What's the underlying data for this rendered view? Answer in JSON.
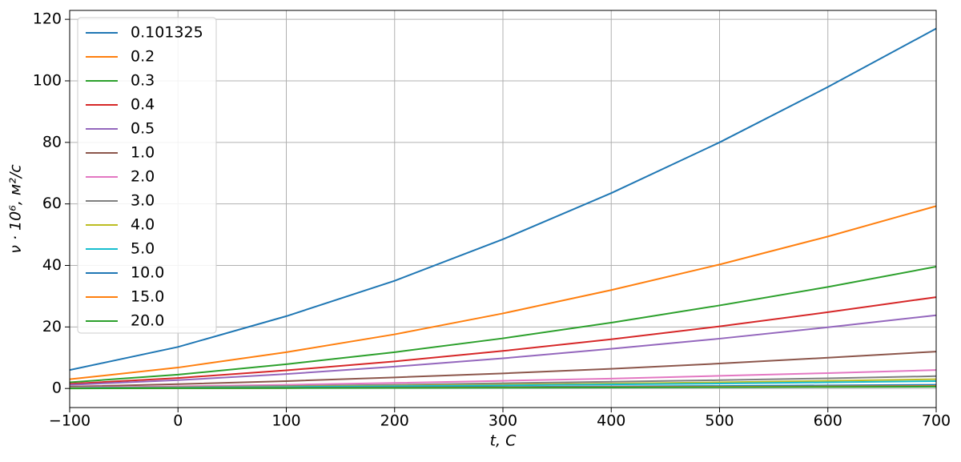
{
  "chart_data": {
    "type": "line",
    "x_label": "t, C",
    "y_label": "ν · 10⁶, м²/с",
    "x": [
      -100,
      0,
      100,
      200,
      300,
      400,
      500,
      600,
      700
    ],
    "xlim": [
      -100,
      700
    ],
    "ylim": [
      -6.2,
      122.9
    ],
    "xticks": [
      {
        "value": -100,
        "label": "−100"
      },
      0,
      100,
      200,
      300,
      400,
      500,
      600,
      700
    ],
    "yticks": [
      0,
      20,
      40,
      60,
      80,
      100,
      120
    ],
    "grid": true,
    "legend": "upper left",
    "series": [
      {
        "name": "0.101325",
        "color": "#1f77b4",
        "values": [
          6,
          13.5,
          23.5,
          35,
          48.5,
          63.5,
          80,
          98,
          117
        ]
      },
      {
        "name": "0.2",
        "color": "#ff7f0e",
        "values": [
          3,
          6.8,
          11.8,
          17.6,
          24.4,
          32,
          40.3,
          49.4,
          59.3
        ]
      },
      {
        "name": "0.3",
        "color": "#2ca02c",
        "values": [
          2,
          4.5,
          7.9,
          11.8,
          16.3,
          21.4,
          27,
          33,
          39.6
        ]
      },
      {
        "name": "0.4",
        "color": "#d62728",
        "values": [
          1.5,
          3.4,
          5.9,
          8.8,
          12.2,
          16,
          20.2,
          24.8,
          29.7
        ]
      },
      {
        "name": "0.5",
        "color": "#9467bd",
        "values": [
          1.2,
          2.7,
          4.7,
          7.1,
          9.8,
          12.9,
          16.2,
          19.9,
          23.8
        ]
      },
      {
        "name": "1.0",
        "color": "#8c564b",
        "values": [
          0.6,
          1.4,
          2.4,
          3.6,
          4.9,
          6.4,
          8.1,
          10,
          12
        ]
      },
      {
        "name": "2.0",
        "color": "#e377c2",
        "values": [
          0.3,
          0.7,
          1.2,
          1.8,
          2.5,
          3.2,
          4.1,
          5,
          6
        ]
      },
      {
        "name": "3.0",
        "color": "#7f7f7f",
        "values": [
          0.2,
          0.45,
          0.8,
          1.2,
          1.7,
          2.2,
          2.7,
          3.3,
          4
        ]
      },
      {
        "name": "4.0",
        "color": "#bcbd22",
        "values": [
          0.15,
          0.35,
          0.6,
          0.9,
          1.25,
          1.6,
          2,
          2.5,
          3
        ]
      },
      {
        "name": "5.0",
        "color": "#17becf",
        "values": [
          0.12,
          0.28,
          0.48,
          0.72,
          1,
          1.3,
          1.6,
          2,
          2.4
        ]
      },
      {
        "name": "10.0",
        "color": "#1f77b4",
        "values": [
          0.06,
          0.14,
          0.24,
          0.36,
          0.5,
          0.65,
          0.8,
          1,
          1.2
        ]
      },
      {
        "name": "15.0",
        "color": "#ff7f0e",
        "values": [
          0.04,
          0.1,
          0.16,
          0.24,
          0.33,
          0.43,
          0.54,
          0.66,
          0.8
        ]
      },
      {
        "name": "20.0",
        "color": "#2ca02c",
        "values": [
          0.03,
          0.07,
          0.12,
          0.18,
          0.25,
          0.32,
          0.4,
          0.5,
          0.6
        ]
      }
    ]
  }
}
